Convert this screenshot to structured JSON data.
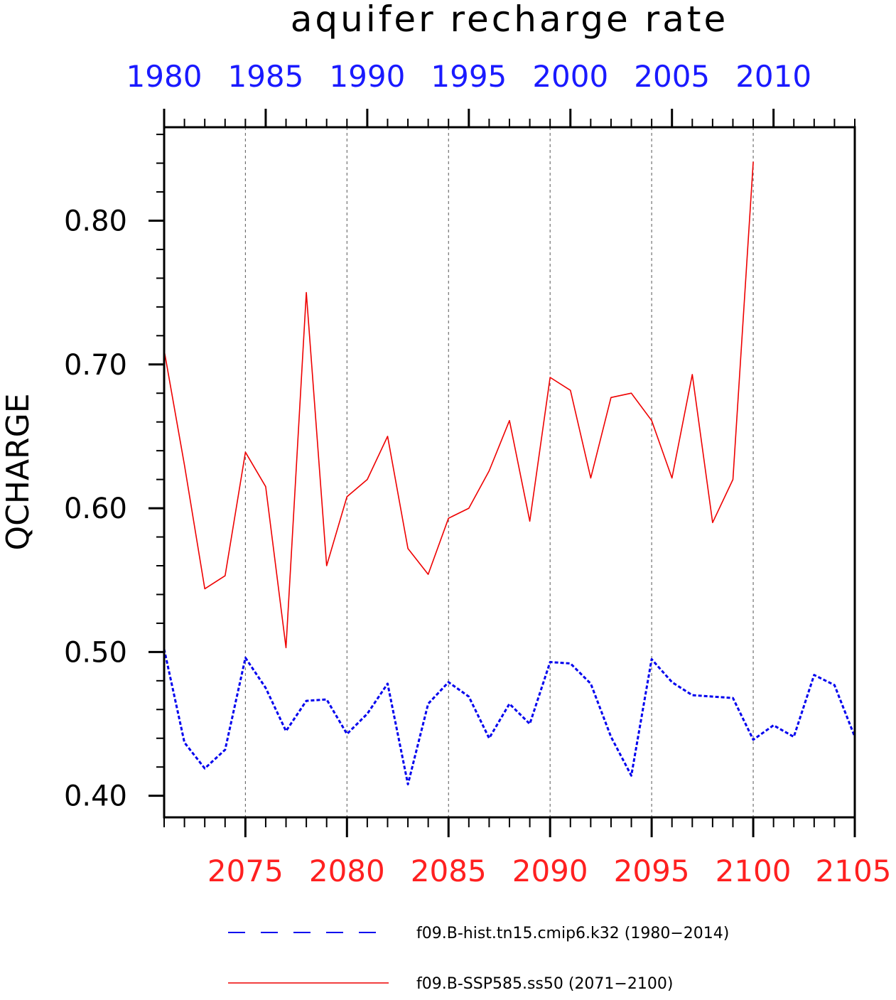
{
  "chart_data": {
    "type": "line",
    "title": "aquifer recharge rate",
    "ylabel": "QCHARGE",
    "ylim": [
      0.385,
      0.865
    ],
    "yticks": [
      "0.40",
      "0.50",
      "0.60",
      "0.70",
      "0.80"
    ],
    "yticks_values": [
      0.4,
      0.5,
      0.6,
      0.7,
      0.8
    ],
    "x_bottom": {
      "range": [
        2071,
        2105
      ],
      "tick_labels": [
        "2075",
        "2080",
        "2085",
        "2090",
        "2095",
        "2100",
        "2105"
      ],
      "tick_values": [
        2075,
        2080,
        2085,
        2090,
        2095,
        2100,
        2105
      ]
    },
    "x_top": {
      "range": [
        1980,
        2014
      ],
      "tick_labels": [
        "1980",
        "1985",
        "1990",
        "1995",
        "2000",
        "2005",
        "2010"
      ],
      "tick_values": [
        1980,
        1985,
        1990,
        1995,
        2000,
        2005,
        2010
      ]
    },
    "grid": "vertical dashed at major ticks",
    "legend_position": "bottom",
    "series": [
      {
        "name": "f09.B-hist.tn15.cmip6.k32 (1980−2014)",
        "axis": "top",
        "color": "#0000ee",
        "style": "dashed",
        "x": [
          1980,
          1981,
          1982,
          1983,
          1984,
          1985,
          1986,
          1987,
          1988,
          1989,
          1990,
          1991,
          1992,
          1993,
          1994,
          1995,
          1996,
          1997,
          1998,
          1999,
          2000,
          2001,
          2002,
          2003,
          2004,
          2005,
          2006,
          2007,
          2008,
          2009,
          2010,
          2011,
          2012,
          2013,
          2014
        ],
        "values": [
          0.502,
          0.437,
          0.419,
          0.432,
          0.496,
          0.475,
          0.445,
          0.466,
          0.467,
          0.443,
          0.457,
          0.478,
          0.408,
          0.464,
          0.479,
          0.469,
          0.44,
          0.464,
          0.45,
          0.493,
          0.492,
          0.478,
          0.441,
          0.414,
          0.495,
          0.479,
          0.47,
          0.469,
          0.468,
          0.439,
          0.449,
          0.441,
          0.484,
          0.477,
          0.441
        ]
      },
      {
        "name": "f09.B-SSP585.ss50 (2071−2100)",
        "axis": "bottom",
        "color": "#ee0000",
        "style": "solid",
        "x": [
          2071,
          2072,
          2073,
          2074,
          2075,
          2076,
          2077,
          2078,
          2079,
          2080,
          2081,
          2082,
          2083,
          2084,
          2085,
          2086,
          2087,
          2088,
          2089,
          2090,
          2091,
          2092,
          2093,
          2094,
          2095,
          2096,
          2097,
          2098,
          2099,
          2100
        ],
        "values": [
          0.71,
          0.63,
          0.544,
          0.553,
          0.639,
          0.615,
          0.503,
          0.75,
          0.56,
          0.608,
          0.62,
          0.65,
          0.572,
          0.554,
          0.593,
          0.6,
          0.626,
          0.661,
          0.591,
          0.691,
          0.682,
          0.621,
          0.677,
          0.68,
          0.661,
          0.621,
          0.693,
          0.59,
          0.62,
          0.841
        ]
      }
    ]
  }
}
